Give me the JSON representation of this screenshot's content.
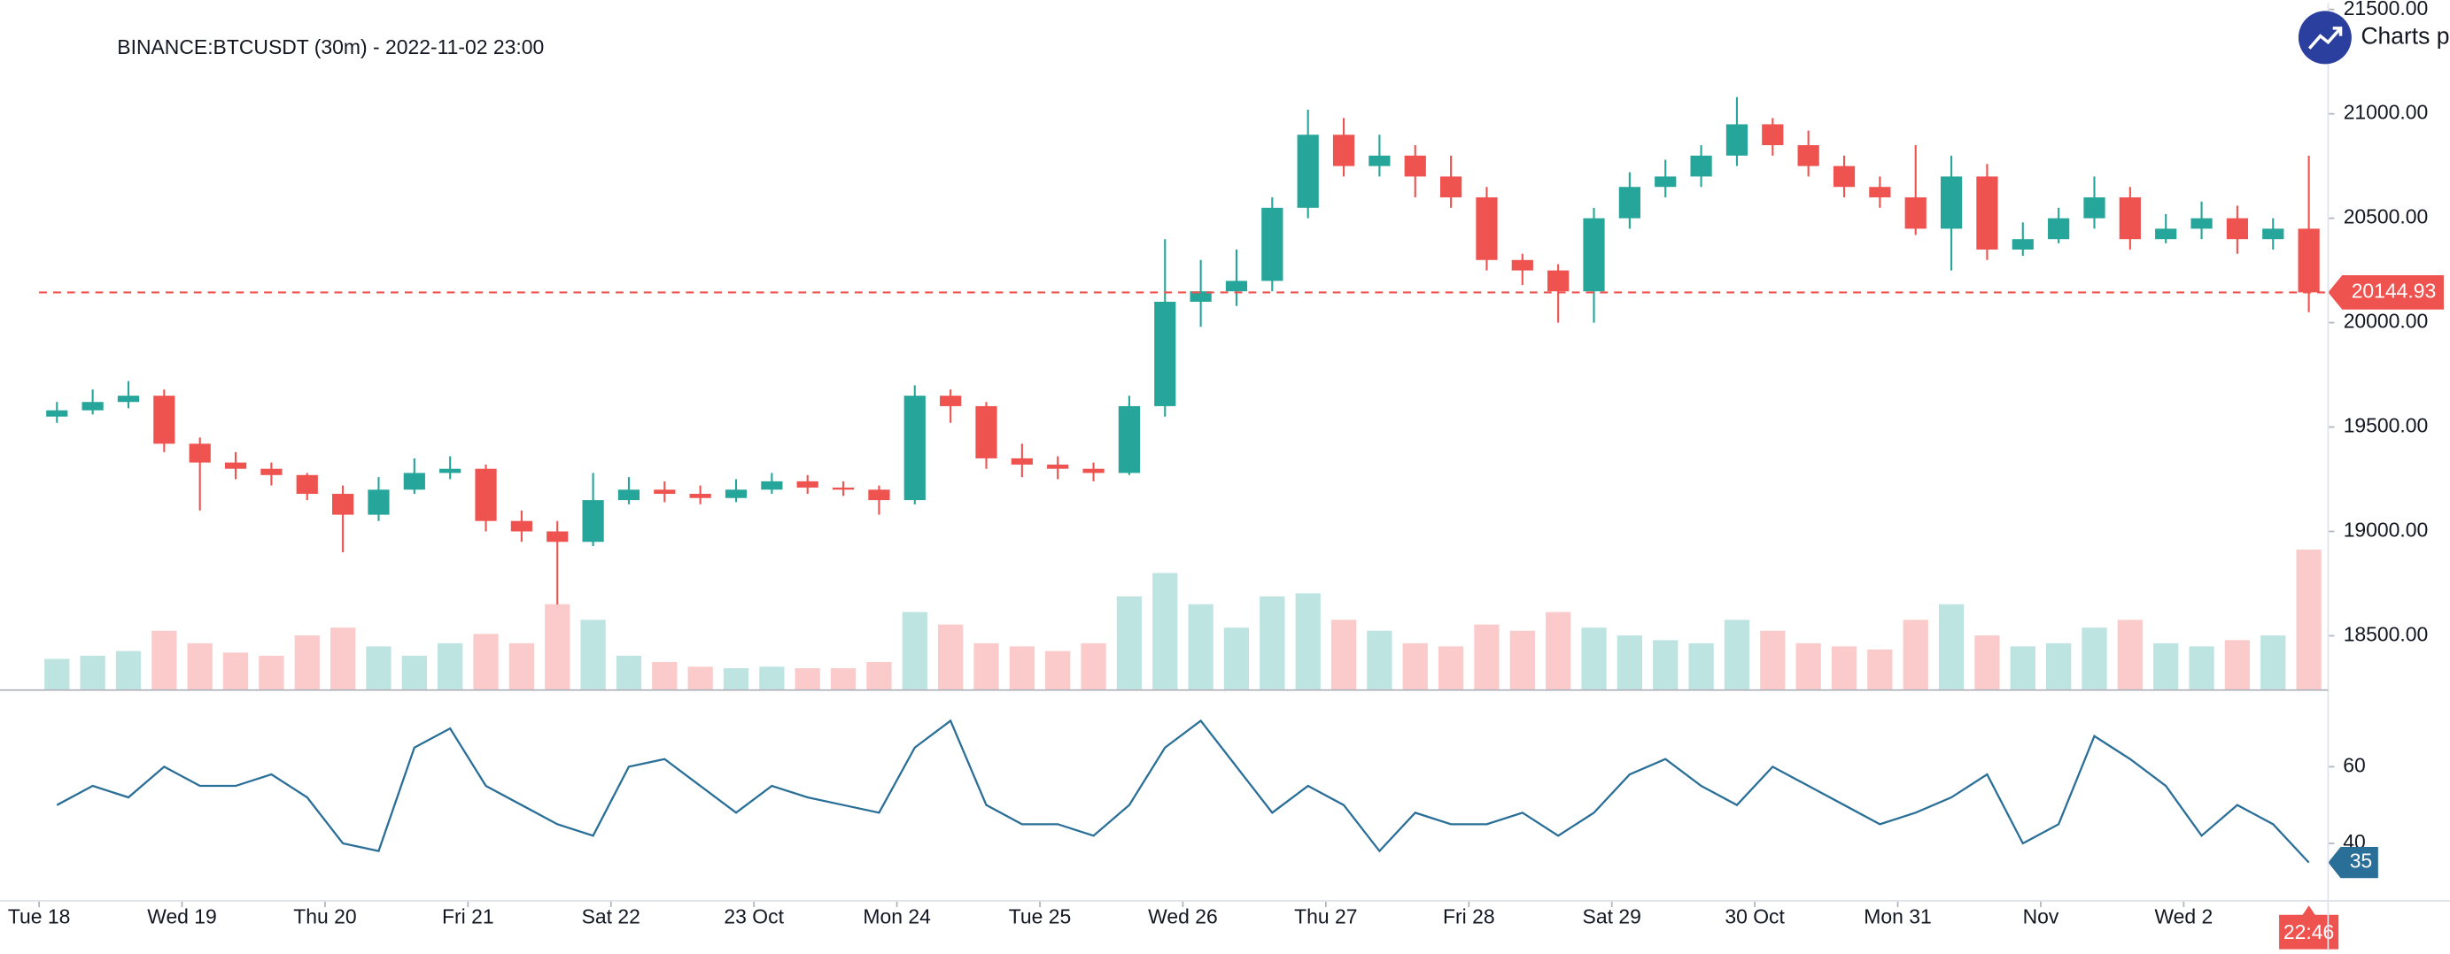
{
  "chart_data": {
    "type": "candlestick",
    "title": "BINANCE:BTCUSDT (30m) - 2022-11-02 23:00",
    "brand": "Charts p",
    "up_color": "#26a69a",
    "down_color": "#ef5350",
    "x": [
      0,
      0.25,
      0.5,
      0.75,
      1,
      1.25,
      1.5,
      1.75,
      2,
      2.25,
      2.5,
      2.75,
      3,
      3.25,
      3.5,
      3.75,
      4,
      4.25,
      4.5,
      4.75,
      5,
      5.25,
      5.5,
      5.75,
      6,
      6.25,
      6.5,
      6.75,
      7,
      7.25,
      7.5,
      7.75,
      8,
      8.25,
      8.5,
      8.75,
      9,
      9.25,
      9.5,
      9.75,
      10,
      10.25,
      10.5,
      10.75,
      11,
      11.25,
      11.5,
      11.75,
      12,
      12.25,
      12.5,
      12.75,
      13,
      13.25,
      13.5,
      13.75,
      14,
      14.25,
      14.5,
      14.75,
      15,
      15.25,
      15.5,
      15.75
    ],
    "open": [
      19550,
      19580,
      19620,
      19650,
      19420,
      19330,
      19300,
      19270,
      19180,
      19080,
      19200,
      19280,
      19300,
      19050,
      19000,
      18950,
      19150,
      19200,
      19180,
      19160,
      19200,
      19240,
      19210,
      19200,
      19150,
      19650,
      19600,
      19350,
      19320,
      19300,
      19280,
      19600,
      20100,
      20150,
      20200,
      20550,
      20900,
      20750,
      20800,
      20700,
      20600,
      20300,
      20250,
      20150,
      20500,
      20650,
      20700,
      20800,
      20950,
      20850,
      20750,
      20650,
      20600,
      20450,
      20700,
      20350,
      20400,
      20500,
      20600,
      20400,
      20450,
      20500,
      20400,
      20450
    ],
    "high": [
      19620,
      19680,
      19720,
      19680,
      19450,
      19380,
      19330,
      19280,
      19220,
      19260,
      19350,
      19360,
      19320,
      19100,
      19050,
      19280,
      19260,
      19240,
      19220,
      19250,
      19280,
      19270,
      19240,
      19220,
      19700,
      19680,
      19620,
      19420,
      19360,
      19330,
      19650,
      20400,
      20300,
      20350,
      20600,
      21020,
      20980,
      20900,
      20850,
      20800,
      20650,
      20330,
      20280,
      20550,
      20720,
      20780,
      20850,
      21080,
      20980,
      20920,
      20800,
      20700,
      20850,
      20800,
      20760,
      20480,
      20550,
      20700,
      20650,
      20520,
      20580,
      20560,
      20500,
      20800
    ],
    "low": [
      19520,
      19560,
      19590,
      19380,
      19100,
      19250,
      19220,
      19150,
      18900,
      19050,
      19180,
      19250,
      19000,
      18950,
      18650,
      18930,
      19130,
      19140,
      19130,
      19140,
      19180,
      19180,
      19170,
      19080,
      19130,
      19520,
      19300,
      19260,
      19250,
      19240,
      19270,
      19550,
      19980,
      20080,
      20150,
      20500,
      20700,
      20700,
      20600,
      20550,
      20250,
      20180,
      20000,
      20000,
      20450,
      20600,
      20650,
      20750,
      20800,
      20700,
      20600,
      20550,
      20420,
      20250,
      20300,
      20320,
      20380,
      20450,
      20350,
      20380,
      20400,
      20330,
      20350,
      20050
    ],
    "close": [
      19580,
      19620,
      19650,
      19420,
      19330,
      19300,
      19270,
      19180,
      19080,
      19200,
      19280,
      19300,
      19050,
      19000,
      18950,
      19150,
      19200,
      19180,
      19160,
      19200,
      19240,
      19210,
      19200,
      19150,
      19650,
      19600,
      19350,
      19320,
      19300,
      19280,
      19600,
      20100,
      20150,
      20200,
      20550,
      20900,
      20750,
      20800,
      20700,
      20600,
      20300,
      20250,
      20150,
      20500,
      20650,
      20700,
      20800,
      20950,
      20850,
      20750,
      20650,
      20600,
      20450,
      20700,
      20350,
      20400,
      20500,
      20600,
      20400,
      20450,
      20500,
      20400,
      20450,
      20144.93
    ],
    "volume": [
      20,
      22,
      25,
      38,
      30,
      24,
      22,
      35,
      40,
      28,
      22,
      30,
      36,
      30,
      55,
      45,
      22,
      18,
      15,
      14,
      15,
      14,
      14,
      18,
      50,
      42,
      30,
      28,
      25,
      30,
      60,
      75,
      55,
      40,
      60,
      62,
      45,
      38,
      30,
      28,
      42,
      38,
      50,
      40,
      35,
      32,
      30,
      45,
      38,
      30,
      28,
      26,
      45,
      55,
      35,
      28,
      30,
      40,
      45,
      30,
      28,
      32,
      35,
      90
    ],
    "xlim": [
      0,
      16.01
    ],
    "ylim": [
      18240,
      21530
    ],
    "yticks": [
      {
        "value": 18500,
        "label": "18500.00"
      },
      {
        "value": 19000,
        "label": "19000.00"
      },
      {
        "value": 19500,
        "label": "19500.00"
      },
      {
        "value": 20000,
        "label": "20000.00"
      },
      {
        "value": 20500,
        "label": "20500.00"
      },
      {
        "value": 21000,
        "label": "21000.00"
      },
      {
        "value": 21500,
        "label": "21500.00"
      }
    ],
    "xticks": [
      {
        "value": 0,
        "label": "Tue 18"
      },
      {
        "value": 1,
        "label": "Wed 19"
      },
      {
        "value": 2,
        "label": "Thu 20"
      },
      {
        "value": 3,
        "label": "Fri 21"
      },
      {
        "value": 4,
        "label": "Sat 22"
      },
      {
        "value": 5,
        "label": "23 Oct"
      },
      {
        "value": 6,
        "label": "Mon 24"
      },
      {
        "value": 7,
        "label": "Tue 25"
      },
      {
        "value": 8,
        "label": "Wed 26"
      },
      {
        "value": 9,
        "label": "Thu 27"
      },
      {
        "value": 10,
        "label": "Fri 28"
      },
      {
        "value": 11,
        "label": "Sat 29"
      },
      {
        "value": 12,
        "label": "30 Oct"
      },
      {
        "value": 13,
        "label": "Mon 31"
      },
      {
        "value": 14,
        "label": "Nov"
      },
      {
        "value": 15,
        "label": "Wed 2"
      }
    ],
    "last_price": 20144.93,
    "time_label": "22:46",
    "rsi": {
      "color": "#2a6f97",
      "values": [
        50,
        55,
        52,
        60,
        55,
        55,
        58,
        52,
        40,
        38,
        65,
        70,
        55,
        50,
        45,
        42,
        60,
        62,
        55,
        48,
        55,
        52,
        50,
        48,
        65,
        72,
        50,
        45,
        45,
        42,
        50,
        65,
        72,
        60,
        48,
        55,
        50,
        38,
        48,
        45,
        45,
        48,
        42,
        48,
        58,
        62,
        55,
        50,
        60,
        55,
        50,
        45,
        48,
        52,
        58,
        40,
        45,
        68,
        62,
        55,
        42,
        50,
        45,
        35
      ],
      "ylim": [
        25,
        80
      ],
      "yticks": [
        40,
        60
      ]
    }
  }
}
